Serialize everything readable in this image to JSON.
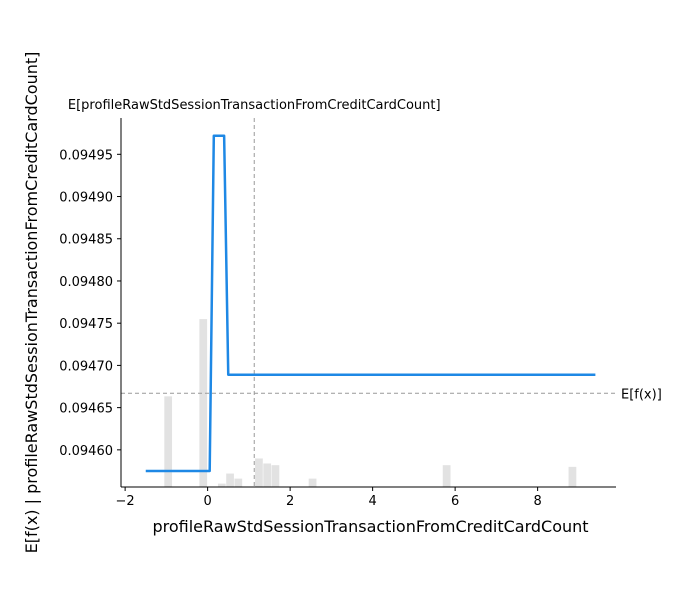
{
  "chart_data": {
    "type": "line",
    "xlabel": "profileRawStdSessionTransactionFromCreditCardCount",
    "ylabel": "E[f(x) | profileRawStdSessionTransactionFromCreditCardCount]",
    "top_annotation": "E[profileRawStdSessionTransactionFromCreditCardCount]",
    "right_annotation": "E[f(x)]",
    "xlim": [
      -2.1,
      9.9
    ],
    "ylim": [
      0.094556,
      0.094993
    ],
    "x_ticks": [
      -2,
      0,
      2,
      4,
      6,
      8
    ],
    "x_tick_labels": [
      "−2",
      "0",
      "2",
      "4",
      "6",
      "8"
    ],
    "y_ticks": [
      0.0946,
      0.09465,
      0.0947,
      0.09475,
      0.0948,
      0.09485,
      0.0949,
      0.09495
    ],
    "y_tick_labels": [
      "0.09460",
      "0.09465",
      "0.09470",
      "0.09475",
      "0.09480",
      "0.09485",
      "0.09490",
      "0.09495"
    ],
    "expected_x": 1.13,
    "expected_fx": 0.094667,
    "series": [
      {
        "color": "#1E88E5",
        "x": [
          -1.5,
          0.05,
          0.15,
          0.4,
          0.5,
          9.4
        ],
        "y": [
          0.094575,
          0.094575,
          0.094972,
          0.094972,
          0.094689,
          0.094689
        ]
      }
    ],
    "histogram": {
      "color": "#e2e2e2",
      "bins": [
        {
          "x0": -1.05,
          "x1": -0.85,
          "height": 0.54
        },
        {
          "x0": -0.2,
          "x1": 0.0,
          "height": 1.0
        },
        {
          "x0": 0.25,
          "x1": 0.45,
          "height": 0.02
        },
        {
          "x0": 0.45,
          "x1": 0.65,
          "height": 0.08
        },
        {
          "x0": 0.65,
          "x1": 0.85,
          "height": 0.05
        },
        {
          "x0": 1.15,
          "x1": 1.35,
          "height": 0.17
        },
        {
          "x0": 1.35,
          "x1": 1.55,
          "height": 0.14
        },
        {
          "x0": 1.55,
          "x1": 1.75,
          "height": 0.13
        },
        {
          "x0": 2.45,
          "x1": 2.65,
          "height": 0.05
        },
        {
          "x0": 5.7,
          "x1": 5.9,
          "height": 0.13
        },
        {
          "x0": 8.75,
          "x1": 8.95,
          "height": 0.12
        }
      ]
    },
    "colors": {
      "line": "#1E88E5",
      "histogram": "#e2e2e2",
      "reference_lines": "#999999"
    }
  }
}
